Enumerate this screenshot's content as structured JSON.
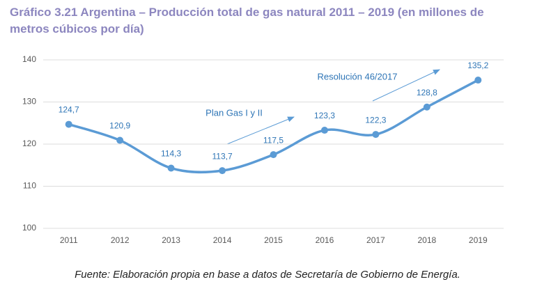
{
  "chart_data": {
    "type": "line",
    "title": "Gráfico 3.21 Argentina – Producción total de gas natural 2011 – 2019 (en millones de metros cúbicos por día)",
    "categories": [
      "2011",
      "2012",
      "2013",
      "2014",
      "2015",
      "2016",
      "2017",
      "2018",
      "2019"
    ],
    "series": [
      {
        "color": "#5b9bd5",
        "values": [
          124.7,
          120.9,
          114.3,
          113.7,
          117.5,
          123.3,
          122.3,
          128.8,
          135.2
        ],
        "value_labels": [
          "124,7",
          "120,9",
          "114,3",
          "113,7",
          "117,5",
          "123,3",
          "122,3",
          "128,8",
          "135,2"
        ]
      }
    ],
    "ylim": [
      100,
      140
    ],
    "yticks": [
      100,
      110,
      120,
      130,
      140
    ],
    "grid": true,
    "annotations": [
      "Plan Gas I y II",
      "Resolución 46/2017"
    ],
    "source": "Fuente: Elaboración propia en base a datos de Secretaría de Gobierno de Energía."
  }
}
